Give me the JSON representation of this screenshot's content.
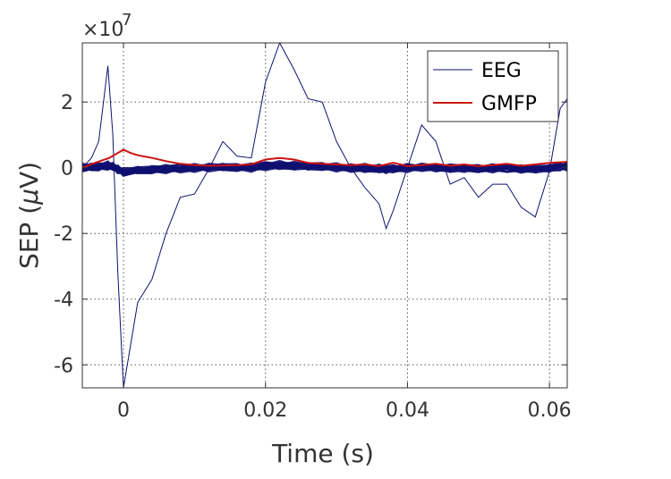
{
  "chart_data": {
    "type": "line",
    "xlabel": "Time (s)",
    "ylabel": "SEP (",
    "ylabel_mu": "μ",
    "ylabel_tail": "V)",
    "xlim": [
      -0.0058,
      0.0625
    ],
    "ylim": [
      -6.7,
      3.8
    ],
    "y_exponent_base": "×10",
    "y_exponent_power": "7",
    "x_ticks": [
      0,
      0.02,
      0.04,
      0.06
    ],
    "x_tick_labels": [
      "0",
      "0.02",
      "0.04",
      "0.06"
    ],
    "y_ticks": [
      -6,
      -4,
      -2,
      0,
      2
    ],
    "y_tick_labels": [
      "-6",
      "-4",
      "-2",
      "0",
      "2"
    ],
    "grid": true,
    "legend_position": "top-right",
    "series": [
      {
        "name": "EEG",
        "color": "#101070",
        "x": [
          -0.0058,
          -0.0045,
          -0.0035,
          -0.0022,
          -0.0015,
          -0.0008,
          0.0,
          0.002,
          0.004,
          0.006,
          0.008,
          0.01,
          0.012,
          0.014,
          0.016,
          0.018,
          0.02,
          0.022,
          0.024,
          0.026,
          0.028,
          0.03,
          0.032,
          0.034,
          0.036,
          0.037,
          0.038,
          0.04,
          0.042,
          0.044,
          0.046,
          0.048,
          0.05,
          0.052,
          0.054,
          0.056,
          0.058,
          0.06,
          0.0615,
          0.0625
        ],
        "values": [
          0.0,
          0.3,
          0.8,
          3.1,
          1.0,
          -3.2,
          -6.7,
          -4.1,
          -3.4,
          -2.0,
          -0.9,
          -0.8,
          -0.05,
          0.8,
          0.35,
          0.3,
          2.6,
          3.8,
          3.0,
          2.1,
          2.0,
          0.8,
          0.0,
          -0.6,
          -1.1,
          -1.85,
          -1.3,
          0.0,
          1.3,
          0.8,
          -0.5,
          -0.3,
          -0.9,
          -0.5,
          -0.5,
          -1.2,
          -1.5,
          -0.1,
          1.8,
          2.1
        ]
      },
      {
        "name": "GMFP",
        "color": "#cc1111",
        "x": [
          -0.0058,
          -0.004,
          -0.002,
          0.0,
          0.001,
          0.002,
          0.004,
          0.006,
          0.008,
          0.01,
          0.012,
          0.014,
          0.016,
          0.018,
          0.02,
          0.022,
          0.024,
          0.026,
          0.028,
          0.03,
          0.032,
          0.034,
          0.036,
          0.038,
          0.04,
          0.042,
          0.044,
          0.046,
          0.048,
          0.05,
          0.052,
          0.054,
          0.056,
          0.058,
          0.06,
          0.0625
        ],
        "values": [
          0.0,
          0.15,
          0.3,
          0.55,
          0.45,
          0.38,
          0.3,
          0.2,
          0.12,
          0.08,
          0.06,
          0.07,
          0.08,
          0.1,
          0.25,
          0.3,
          0.25,
          0.15,
          0.12,
          0.1,
          0.08,
          0.1,
          0.05,
          0.15,
          0.05,
          0.08,
          0.12,
          0.06,
          0.1,
          0.05,
          0.08,
          0.12,
          0.06,
          0.1,
          0.15,
          0.18
        ]
      }
    ]
  }
}
